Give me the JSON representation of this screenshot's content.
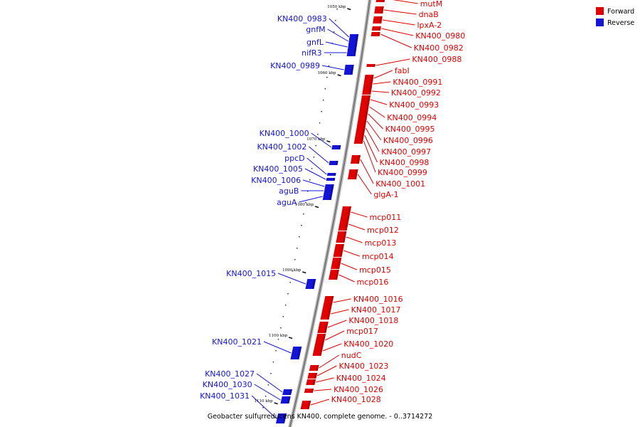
{
  "caption": "Geobacter sulfurreducens KN400, complete genome. - 0..3714272",
  "legend": [
    {
      "label": "Forward",
      "color": "#e00000"
    },
    {
      "label": "Reverse",
      "color": "#1414d8"
    }
  ],
  "colors": {
    "forward": "#e00000",
    "reverse": "#1414d8",
    "backbone": "#999999"
  },
  "ticks": [
    "1050 kbp",
    "1060 kbp",
    "1070 kbp",
    "1080 kbp",
    "1090 kbp",
    "1100 kbp",
    "1110 kbp"
  ],
  "forward_labels": [
    "mutM",
    "dnaB",
    "lpxA-2",
    "KN400_0980",
    "KN400_0982",
    "KN400_0988",
    "fabI",
    "KN400_0991",
    "KN400_0992",
    "KN400_0993",
    "KN400_0994",
    "KN400_0995",
    "KN400_0996",
    "KN400_0997",
    "KN400_0998",
    "KN400_0999",
    "KN400_1001",
    "glgA-1",
    "mcp011",
    "mcp012",
    "mcp013",
    "mcp014",
    "mcp015",
    "mcp016",
    "KN400_1016",
    "KN400_1017",
    "KN400_1018",
    "mcp017",
    "KN400_1020",
    "nudC",
    "KN400_1023",
    "KN400_1024",
    "KN400_1026",
    "KN400_1028"
  ],
  "reverse_labels": [
    "KN400_0983",
    "gnfM",
    "gnfL",
    "nifR3",
    "KN400_0989",
    "KN400_1000",
    "KN400_1002",
    "ppcD",
    "KN400_1005",
    "KN400_1006",
    "aguB",
    "aguA",
    "KN400_1015",
    "KN400_1021",
    "KN400_1027",
    "KN400_1030",
    "KN400_1031"
  ]
}
